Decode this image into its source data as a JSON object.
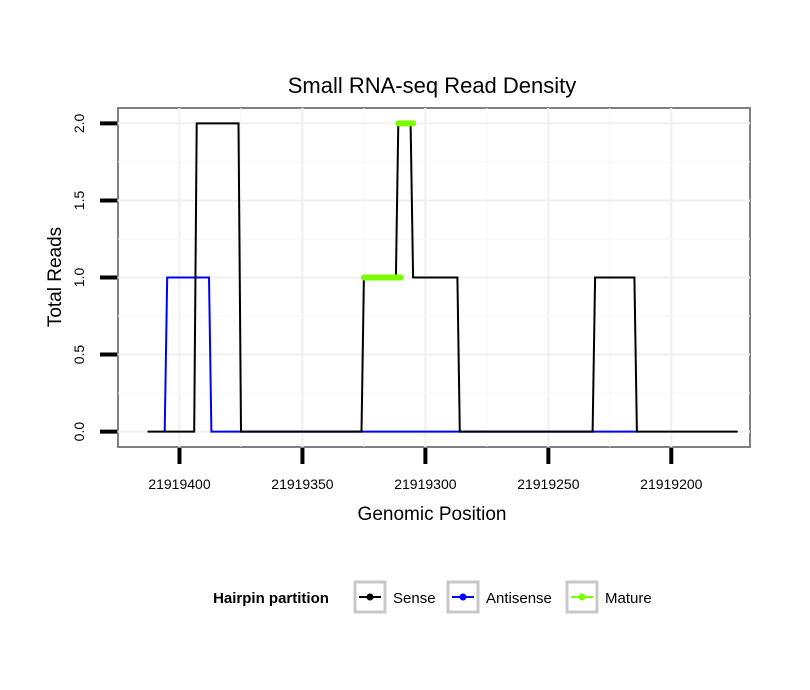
{
  "chart_data": {
    "type": "line",
    "title": "Small RNA-seq Read Density",
    "xlabel": "Genomic Position",
    "ylabel": "Total Reads",
    "xlim": [
      21919425,
      21919168
    ],
    "ylim": [
      -0.1,
      2.1
    ],
    "x_reversed": true,
    "grid": true,
    "x_ticks": [
      21919400,
      21919350,
      21919300,
      21919250,
      21919200
    ],
    "x_tick_labels": [
      "21919400",
      "21919350",
      "21919300",
      "21919250",
      "21919200"
    ],
    "y_ticks": [
      0.0,
      0.5,
      1.0,
      1.5,
      2.0
    ],
    "y_tick_labels": [
      "0.0",
      "0.5",
      "1.0",
      "1.5",
      "2.0"
    ],
    "legend": {
      "title": "Hairpin partition",
      "position": "bottom",
      "entries": [
        "Sense",
        "Antisense",
        "Mature"
      ]
    },
    "series": [
      {
        "name": "Sense",
        "color": "#000000",
        "x": [
          21919413,
          21919394,
          21919393,
          21919376,
          21919375,
          21919326,
          21919325,
          21919312,
          21919311,
          21919306,
          21919305,
          21919287,
          21919286,
          21919232,
          21919231,
          21919215,
          21919214,
          21919173
        ],
        "y": [
          0,
          0,
          2,
          2,
          0,
          0,
          1,
          1,
          2,
          2,
          1,
          1,
          0,
          0,
          1,
          1,
          0,
          0
        ]
      },
      {
        "name": "Antisense",
        "color": "#0000ff",
        "x": [
          21919406,
          21919405,
          21919388,
          21919387,
          21919214
        ],
        "y": [
          0,
          1,
          1,
          0,
          0
        ]
      },
      {
        "name": "Mature",
        "color": "#7cfc00",
        "segments": [
          {
            "x": [
              21919325,
              21919310
            ],
            "y": [
              1,
              1
            ]
          },
          {
            "x": [
              21919311,
              21919305
            ],
            "y": [
              2,
              2
            ]
          }
        ]
      }
    ]
  }
}
